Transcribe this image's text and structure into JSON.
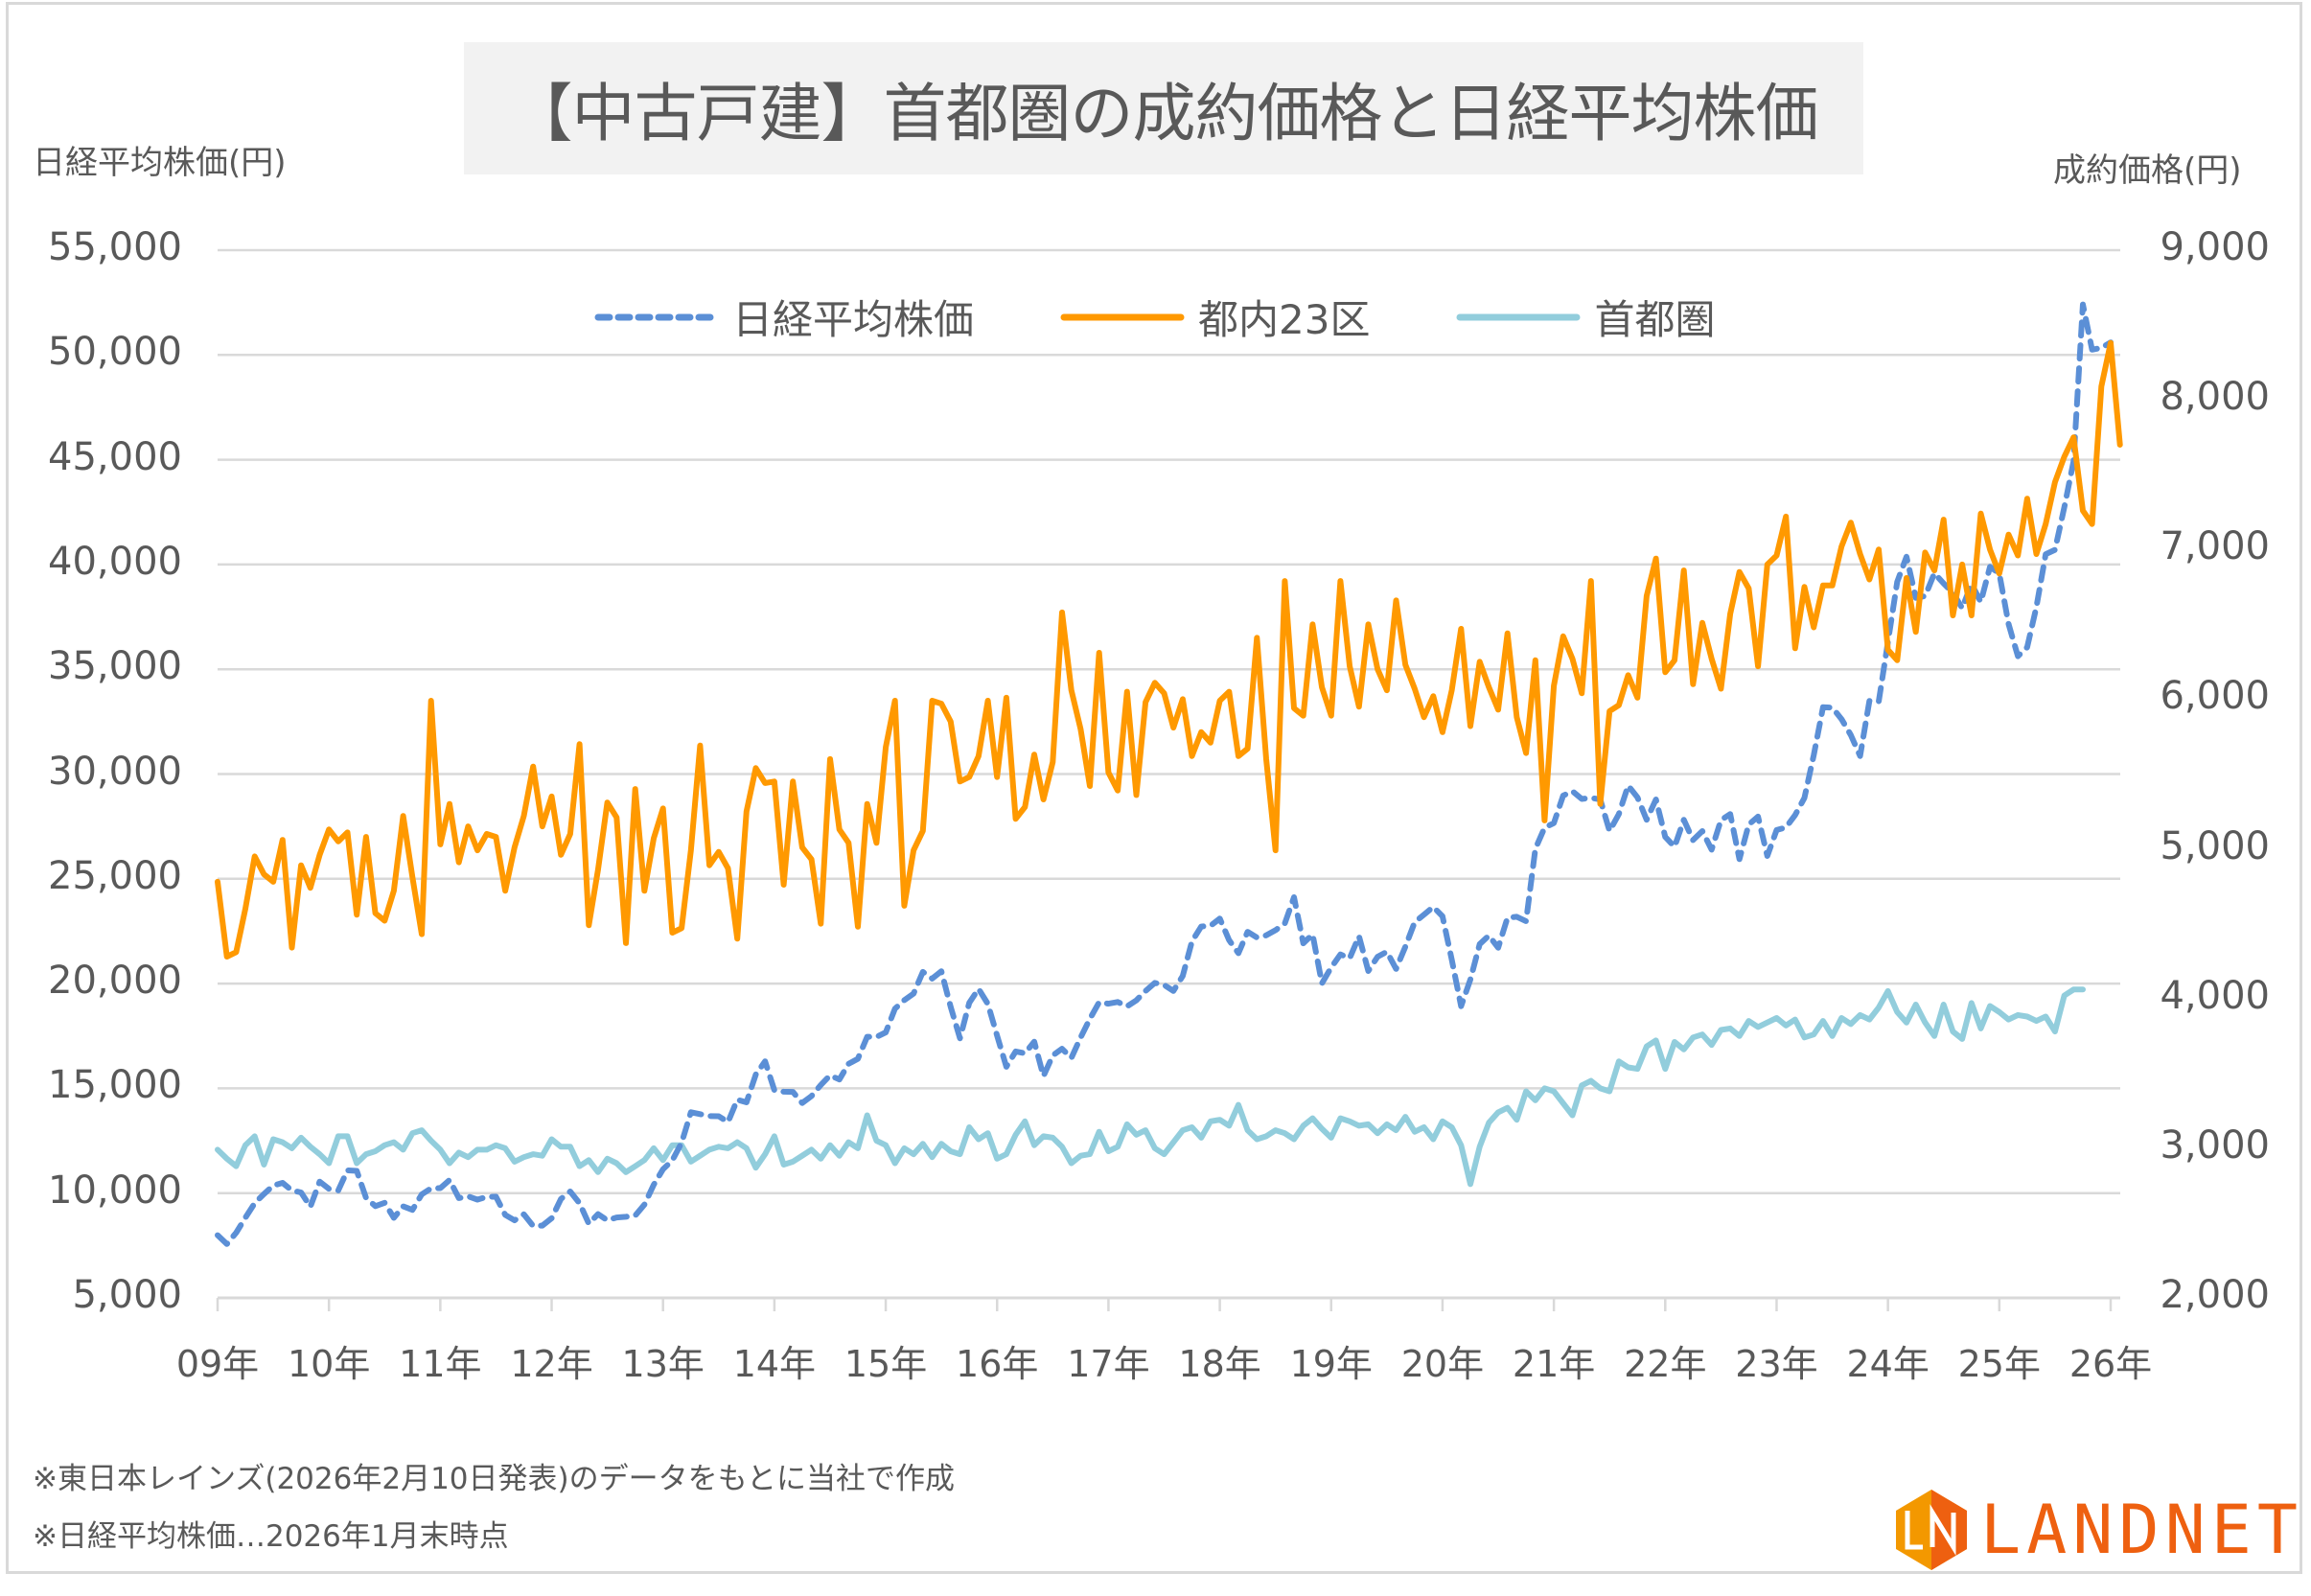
{
  "chart_data": {
    "type": "line",
    "title": "【中古戸建】首都圏の成約価格と日経平均株価",
    "ylabel_left": "日経平均株価(円)",
    "ylabel_right": "成約価格(円)",
    "ylim_left": [
      5000,
      55000
    ],
    "ylim_right": [
      2000,
      9000
    ],
    "yticks_left": [
      "55,000",
      "50,000",
      "45,000",
      "40,000",
      "35,000",
      "30,000",
      "25,000",
      "20,000",
      "15,000",
      "10,000",
      "5,000"
    ],
    "yticks_right": [
      "9,000",
      "8,000",
      "7,000",
      "6,000",
      "5,000",
      "4,000",
      "3,000",
      "2,000"
    ],
    "xticks": [
      "09年",
      "10年",
      "11年",
      "12年",
      "13年",
      "14年",
      "15年",
      "16年",
      "17年",
      "18年",
      "19年",
      "20年",
      "21年",
      "22年",
      "23年",
      "24年",
      "25年",
      "26年"
    ],
    "x_start": "2009-01",
    "x_interval": "monthly",
    "grid": true,
    "legend_position": "top",
    "series": [
      {
        "name": "日経平均株価",
        "axis": "left",
        "style": "dashed",
        "color": "#5b8fd6",
        "values": [
          7990,
          7570,
          8110,
          8830,
          9520,
          9960,
          10360,
          10490,
          10130,
          10030,
          9350,
          10550,
          10200,
          10130,
          11090,
          11060,
          9770,
          9380,
          9540,
          8820,
          9370,
          9200,
          9940,
          10230,
          10240,
          10620,
          9760,
          9850,
          9690,
          9820,
          9830,
          8960,
          8700,
          8990,
          8430,
          8450,
          8800,
          9720,
          10080,
          9520,
          8540,
          9000,
          8700,
          8840,
          8870,
          8930,
          9450,
          10400,
          11140,
          11560,
          12400,
          13860,
          13770,
          13680,
          13670,
          13390,
          14460,
          14330,
          15660,
          16290,
          14910,
          14840,
          14830,
          14300,
          14630,
          15160,
          15620,
          15420,
          16170,
          16410,
          17460,
          17450,
          17670,
          18800,
          19210,
          19520,
          20560,
          20240,
          20590,
          18890,
          17390,
          19080,
          19750,
          19030,
          17520,
          16030,
          16760,
          16670,
          17230,
          15580,
          16570,
          16890,
          16450,
          17430,
          18310,
          19110,
          19040,
          19120,
          18910,
          19200,
          19650,
          20030,
          19930,
          19650,
          20360,
          22010,
          22720,
          22760,
          23100,
          22070,
          21450,
          22470,
          22200,
          22300,
          22550,
          22870,
          24120,
          21920,
          22350,
          20010,
          20770,
          21390,
          21210,
          22260,
          20600,
          21280,
          21520,
          20700,
          21760,
          22930,
          23290,
          23660,
          23210,
          21140,
          18920,
          20190,
          21880,
          22290,
          21710,
          23140,
          23190,
          22980,
          26430,
          27440,
          27660,
          28970,
          29180,
          28810,
          28860,
          28790,
          27280,
          28090,
          29450,
          28890,
          27820,
          28790,
          27000,
          26530,
          27820,
          26850,
          27280,
          26390,
          27800,
          28090,
          25940,
          27590,
          27970,
          26090,
          27330,
          27450,
          28040,
          28860,
          30890,
          33190,
          33170,
          32620,
          31860,
          30860,
          33490,
          33460,
          36290,
          39170,
          40370,
          38410,
          38490,
          39580,
          39100,
          38650,
          37920,
          39080,
          38210,
          39890,
          39570,
          37160,
          35620,
          36050,
          37970,
          40490,
          40700,
          42720,
          44930,
          52410,
          50250,
          50340,
          50600
        ]
      },
      {
        "name": "都内23区",
        "axis": "right",
        "style": "solid",
        "color": "#ff9900",
        "values": [
          4780,
          4280,
          4310,
          4600,
          4950,
          4830,
          4780,
          5060,
          4340,
          4890,
          4740,
          4960,
          5130,
          5050,
          5110,
          4560,
          5080,
          4570,
          4520,
          4720,
          5220,
          4810,
          4430,
          5990,
          5030,
          5300,
          4910,
          5150,
          4990,
          5100,
          5080,
          4720,
          5010,
          5220,
          5550,
          5150,
          5350,
          4960,
          5100,
          5700,
          4490,
          4860,
          5310,
          5210,
          4370,
          5400,
          4720,
          5070,
          5270,
          4440,
          4470,
          4990,
          5690,
          4890,
          4980,
          4870,
          4400,
          5250,
          5540,
          5440,
          5450,
          4760,
          5450,
          5010,
          4930,
          4500,
          5600,
          5130,
          5040,
          4480,
          5300,
          5040,
          5680,
          5990,
          4620,
          4990,
          5120,
          5990,
          5970,
          5850,
          5450,
          5480,
          5620,
          5990,
          5480,
          6010,
          5200,
          5280,
          5630,
          5330,
          5580,
          6580,
          6060,
          5800,
          5420,
          6310,
          5510,
          5390,
          6050,
          5360,
          5980,
          6110,
          6040,
          5810,
          6000,
          5620,
          5780,
          5710,
          5990,
          6050,
          5620,
          5670,
          6410,
          5600,
          4990,
          6790,
          5940,
          5890,
          6500,
          6080,
          5890,
          6790,
          6220,
          5950,
          6500,
          6200,
          6060,
          6660,
          6230,
          6070,
          5880,
          6020,
          5780,
          6060,
          6470,
          5820,
          6250,
          6080,
          5930,
          6440,
          5880,
          5640,
          6260,
          5190,
          6090,
          6420,
          6270,
          6040,
          6790,
          5300,
          5920,
          5960,
          6160,
          6010,
          6690,
          6940,
          6180,
          6260,
          6860,
          6100,
          6510,
          6270,
          6070,
          6570,
          6850,
          6740,
          6220,
          6900,
          6960,
          7220,
          6340,
          6750,
          6480,
          6760,
          6760,
          7020,
          7180,
          6970,
          6800,
          7000,
          6330,
          6260,
          6810,
          6450,
          6980,
          6860,
          7200,
          6560,
          6900,
          6560,
          7240,
          7000,
          6840,
          7100,
          6960,
          7340,
          6970,
          7170,
          7450,
          7620,
          7750,
          7260,
          7170,
          8090,
          8380,
          7700
        ]
      },
      {
        "name": "首都圏",
        "axis": "right",
        "style": "solid",
        "color": "#92cddc",
        "values": [
          2990,
          2930,
          2880,
          3020,
          3080,
          2890,
          3060,
          3040,
          3000,
          3070,
          3010,
          2960,
          2900,
          3080,
          3080,
          2900,
          2960,
          2980,
          3020,
          3040,
          2990,
          3100,
          3120,
          3050,
          2990,
          2900,
          2970,
          2940,
          2990,
          2990,
          3020,
          3000,
          2910,
          2940,
          2960,
          2950,
          3060,
          3010,
          3010,
          2880,
          2920,
          2840,
          2930,
          2900,
          2840,
          2880,
          2920,
          3000,
          2920,
          3020,
          3020,
          2910,
          2950,
          2990,
          3010,
          3000,
          3040,
          3000,
          2870,
          2960,
          3080,
          2890,
          2910,
          2950,
          2990,
          2930,
          3020,
          2950,
          3040,
          3000,
          3220,
          3050,
          3020,
          2900,
          3000,
          2960,
          3030,
          2940,
          3030,
          2980,
          2960,
          3140,
          3060,
          3100,
          2930,
          2960,
          3090,
          3180,
          3020,
          3080,
          3070,
          3010,
          2900,
          2950,
          2960,
          3110,
          2980,
          3010,
          3160,
          3090,
          3120,
          3000,
          2960,
          3040,
          3120,
          3140,
          3070,
          3180,
          3190,
          3150,
          3290,
          3120,
          3060,
          3080,
          3120,
          3100,
          3060,
          3150,
          3200,
          3130,
          3070,
          3200,
          3180,
          3150,
          3160,
          3100,
          3160,
          3120,
          3210,
          3110,
          3140,
          3060,
          3180,
          3140,
          3020,
          2760,
          3010,
          3170,
          3240,
          3270,
          3190,
          3380,
          3320,
          3400,
          3380,
          3300,
          3220,
          3420,
          3450,
          3400,
          3380,
          3580,
          3540,
          3530,
          3680,
          3720,
          3530,
          3710,
          3660,
          3740,
          3760,
          3690,
          3790,
          3800,
          3750,
          3850,
          3810,
          3840,
          3870,
          3820,
          3860,
          3740,
          3760,
          3850,
          3750,
          3870,
          3830,
          3890,
          3860,
          3940,
          4050,
          3910,
          3840,
          3960,
          3840,
          3750,
          3960,
          3780,
          3730,
          3970,
          3800,
          3950,
          3910,
          3860,
          3890,
          3880,
          3850,
          3880,
          3780,
          4020,
          4060,
          4060
        ]
      }
    ]
  },
  "legend": {
    "items": [
      "日経平均株価",
      "都内23区",
      "首都圏"
    ]
  },
  "notes": [
    "※東日本レインズ(2026年2月10日発表)のデータをもとに当社で作成",
    "※日経平均株価…2026年1月末時点"
  ],
  "logo": {
    "text": "LANDNET",
    "mark": "LN",
    "colors": [
      "#f39800",
      "#ee6010"
    ]
  }
}
